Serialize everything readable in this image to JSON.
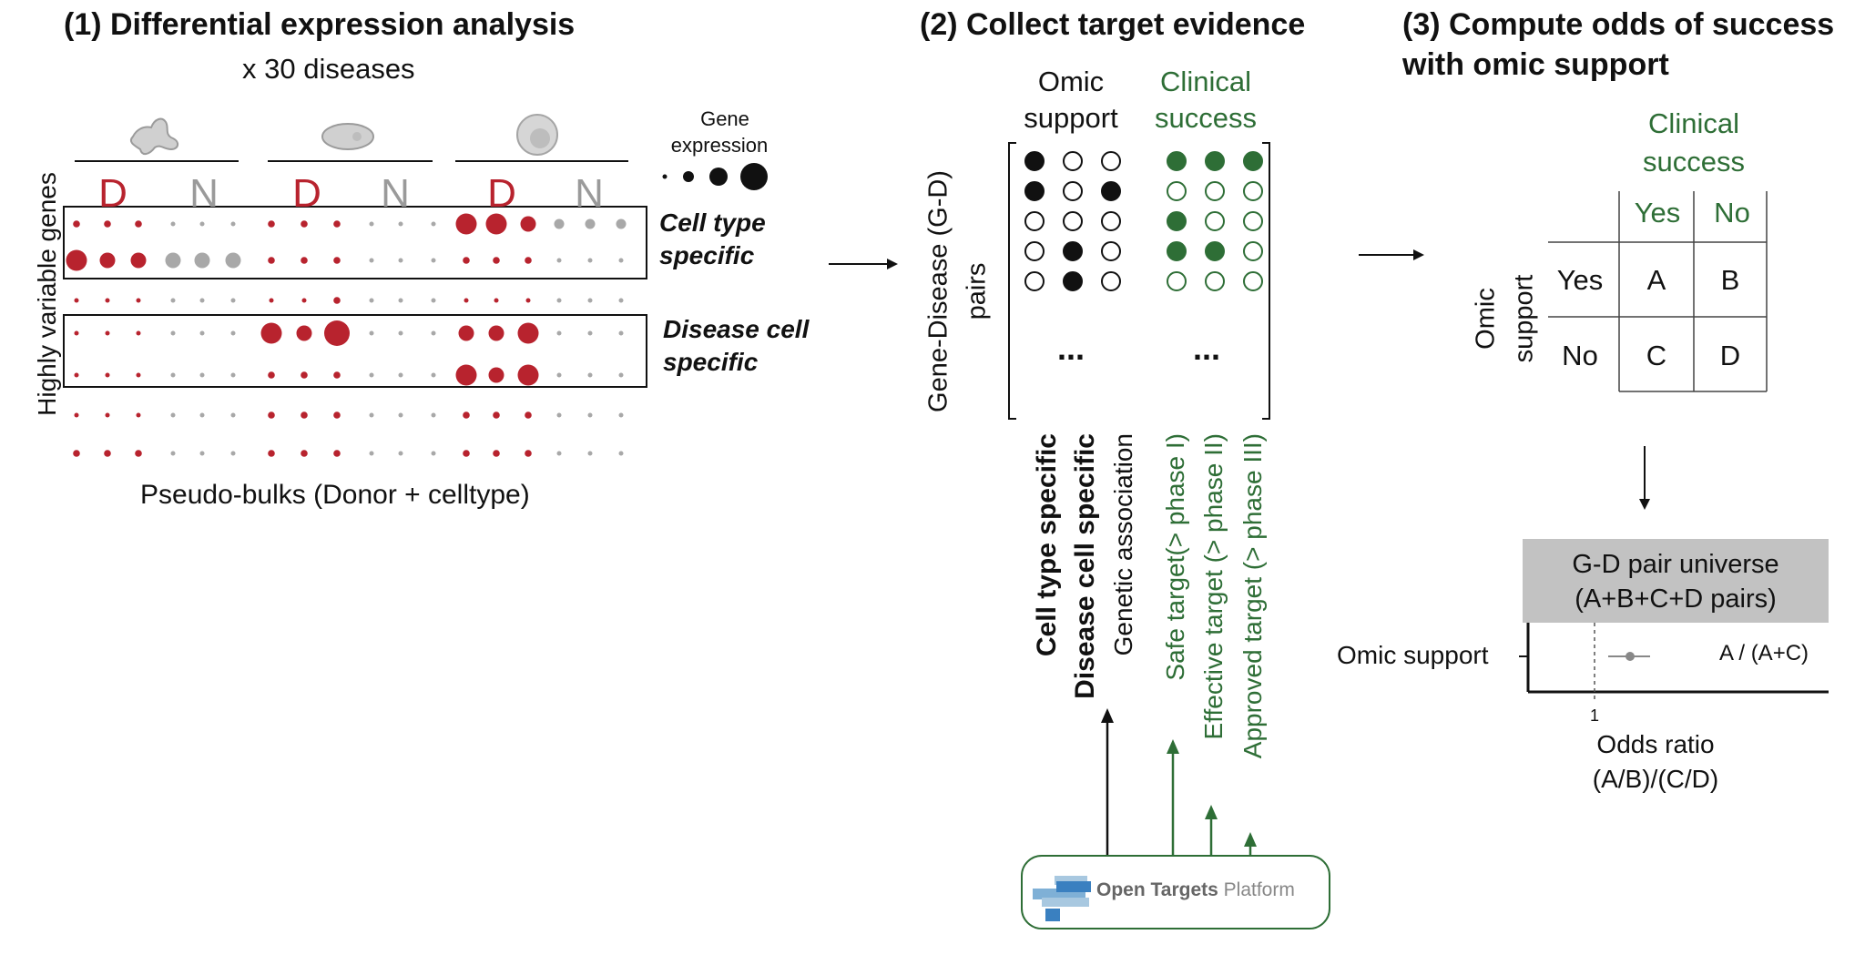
{
  "panel1": {
    "title": "(1) Differential expression analysis",
    "subtitle": "x 30 diseases",
    "yaxis_label": "Highly variable genes",
    "xaxis_label": "Pseudo-bulks (Donor + celltype)",
    "group_labels": [
      "D",
      "N",
      "D",
      "N",
      "D",
      "N"
    ],
    "legend_title_line1": "Gene",
    "legend_title_line2": "expression",
    "box1_label_line1": "Cell type",
    "box1_label_line2": "specific",
    "box2_label_line1": "Disease cell",
    "box2_label_line2": "specific",
    "colors": {
      "disease": "#b8232e",
      "normal": "#a8a8a8",
      "text": "#111111"
    },
    "icons": [
      "macrophage-cell-icon",
      "epithelial-cell-icon",
      "round-cell-icon"
    ],
    "dot_rows": [
      [
        2,
        2,
        2,
        1,
        1,
        1,
        2,
        2,
        2,
        1,
        1,
        1,
        5,
        5,
        4,
        3,
        3,
        3
      ],
      [
        5,
        4,
        4,
        4,
        4,
        4,
        2,
        2,
        2,
        1,
        1,
        1,
        2,
        2,
        2,
        1,
        1,
        1
      ],
      [
        1,
        1,
        1,
        1,
        1,
        1,
        1,
        1,
        2,
        1,
        1,
        1,
        1,
        1,
        1,
        1,
        1,
        1
      ],
      [
        1,
        1,
        1,
        1,
        1,
        1,
        5,
        4,
        6,
        1,
        1,
        1,
        4,
        4,
        5,
        1,
        1,
        1
      ],
      [
        1,
        1,
        1,
        1,
        1,
        1,
        2,
        2,
        2,
        1,
        1,
        1,
        5,
        4,
        5,
        1,
        1,
        1
      ],
      [
        1,
        1,
        1,
        1,
        1,
        1,
        2,
        2,
        2,
        1,
        1,
        1,
        2,
        2,
        2,
        1,
        1,
        1
      ],
      [
        2,
        2,
        2,
        1,
        1,
        1,
        2,
        2,
        2,
        1,
        1,
        1,
        2,
        2,
        2,
        1,
        1,
        1
      ]
    ]
  },
  "panel2": {
    "title": "(2) Collect target evidence",
    "omic_header_line1": "Omic",
    "omic_header_line2": "support",
    "clinical_header_line1": "Clinical",
    "clinical_header_line2": "success",
    "yaxis_label_line1": "Gene-Disease (G-D)",
    "yaxis_label_line2": "pairs",
    "ellipsis": "...",
    "omic_matrix": [
      [
        1,
        0,
        0
      ],
      [
        1,
        0,
        1
      ],
      [
        0,
        0,
        0
      ],
      [
        0,
        1,
        0
      ],
      [
        0,
        1,
        0
      ]
    ],
    "clinical_matrix": [
      [
        1,
        1,
        1
      ],
      [
        0,
        0,
        0
      ],
      [
        1,
        0,
        0
      ],
      [
        1,
        1,
        0
      ],
      [
        0,
        0,
        0
      ]
    ],
    "omic_columns": [
      "Cell type specific",
      "Disease cell specific",
      "Genetic association"
    ],
    "clinical_columns": [
      "Safe target(> phase I)",
      "Effective target (> phase II)",
      "Approved target (> phase III)"
    ],
    "source_logo_bold": "Open Targets",
    "source_logo_light": "Platform",
    "colors": {
      "omic": "#111111",
      "clinical": "#2e6e36"
    }
  },
  "panel3": {
    "title_line1": "(3) Compute odds of success",
    "title_line2": "with omic support",
    "clinical_header_line1": "Clinical",
    "clinical_header_line2": "success",
    "col_yes": "Yes",
    "col_no": "No",
    "row_header_line1": "Omic",
    "row_header_line2": "support",
    "row_yes": "Yes",
    "row_no": "No",
    "cells": [
      "A",
      "B",
      "C",
      "D"
    ],
    "universe_line1": "G-D pair universe",
    "universe_line2": "(A+B+C+D pairs)",
    "forest_row_label": "Omic support",
    "forest_annotation": "A / (A+C)",
    "forest_tick": "1",
    "xaxis_label_line1": "Odds ratio",
    "xaxis_label_line2": "(A/B)/(C/D)"
  }
}
